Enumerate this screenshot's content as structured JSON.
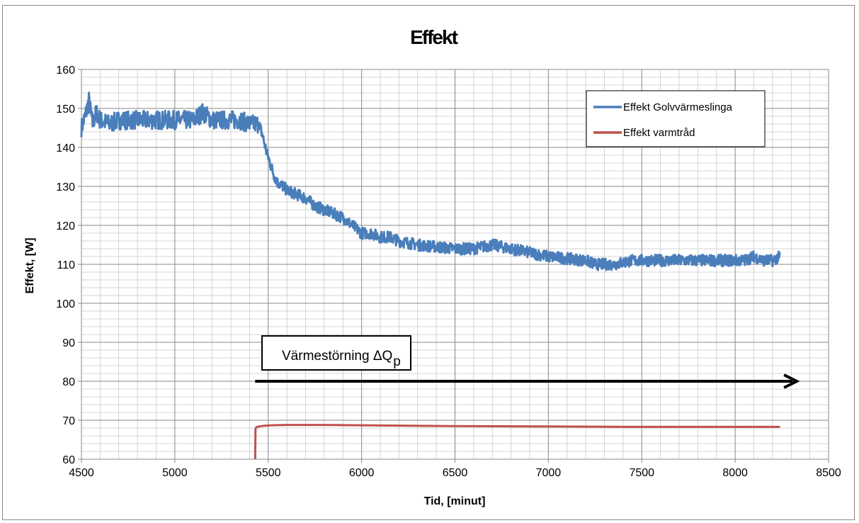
{
  "chart_data": {
    "type": "line",
    "title": "Effekt",
    "xlabel": "Tid, [minut]",
    "ylabel": "Effekt, [W]",
    "xlim": [
      4500,
      8500
    ],
    "ylim": [
      60,
      160
    ],
    "x_ticks": [
      "4500",
      "5000",
      "5500",
      "6000",
      "6500",
      "7000",
      "7500",
      "8000",
      "8500"
    ],
    "y_ticks": [
      "60",
      "70",
      "80",
      "90",
      "100",
      "110",
      "120",
      "130",
      "140",
      "150",
      "160"
    ],
    "grid": true,
    "legend_position": "top-right",
    "series": [
      {
        "name": "Effekt Golvvärmeslinga",
        "color": "#4a7ebb",
        "x": [
          4500,
          4520,
          4540,
          4560,
          4580,
          4600,
          4650,
          4700,
          4800,
          4900,
          5000,
          5100,
          5150,
          5200,
          5250,
          5300,
          5350,
          5400,
          5430,
          5450,
          5470,
          5490,
          5510,
          5530,
          5550,
          5580,
          5600,
          5650,
          5700,
          5750,
          5800,
          5850,
          5900,
          5950,
          6000,
          6050,
          6100,
          6150,
          6200,
          6300,
          6400,
          6500,
          6600,
          6700,
          6800,
          6900,
          7000,
          7100,
          7200,
          7250,
          7300,
          7350,
          7400,
          7450,
          7500,
          7600,
          7700,
          7800,
          7900,
          8000,
          8050,
          8100,
          8150,
          8200,
          8240
        ],
        "values": [
          145,
          148,
          152,
          146,
          149,
          147,
          146,
          147,
          147,
          147,
          147,
          147,
          149,
          147,
          147,
          147,
          147,
          146,
          146,
          146,
          143,
          139,
          136,
          133,
          131,
          130,
          129,
          128,
          127,
          125,
          124,
          123,
          122,
          120,
          118,
          118,
          117,
          117,
          116,
          115,
          114.5,
          114,
          114,
          115,
          114,
          113,
          112,
          111.5,
          111,
          110,
          110,
          110,
          110.5,
          111,
          111,
          111,
          111,
          111,
          111,
          111,
          111,
          112,
          111,
          111,
          112
        ]
      },
      {
        "name": "Effekt varmtråd",
        "color": "#c0504d",
        "x": [
          5430,
          5432,
          5436,
          5450,
          5480,
          5520,
          5600,
          5700,
          5800,
          6000,
          6500,
          7000,
          7500,
          8000,
          8240
        ],
        "values": [
          60,
          67.8,
          68.2,
          68.4,
          68.6,
          68.7,
          68.8,
          68.8,
          68.8,
          68.7,
          68.5,
          68.4,
          68.3,
          68.3,
          68.3
        ]
      }
    ],
    "annotation": {
      "text": "Värmestörning ΔQ",
      "subscript": "p",
      "arrow_x": [
        5430,
        8330
      ],
      "arrow_y": 80
    }
  }
}
